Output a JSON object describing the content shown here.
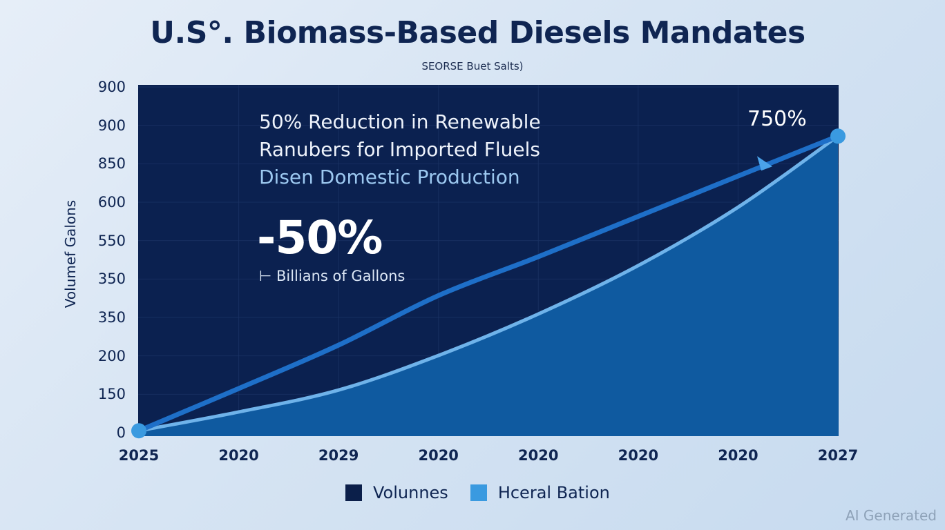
{
  "header": {
    "title": "U.S°. Biomass-Based Diesels Mandates",
    "subtitle": "SEORSE Buet Salts)"
  },
  "annotations": {
    "line1": "50% Reduction in Renewable",
    "line2": "Ranubers for Imported Fluels",
    "line3": "Disen Domestic Production",
    "big_value": "-50%",
    "unit_label": "⊢ Billians of Gallons",
    "end_label": "750%"
  },
  "legend": {
    "items": [
      {
        "label": "Volunnes",
        "color": "#0b1f4a"
      },
      {
        "label": "Hceral Bation",
        "color": "#3a9ae0"
      }
    ]
  },
  "watermark": "AI Generated",
  "colors": {
    "plot_bg": "#0b2150",
    "area_fill": "#0f5aa0",
    "area_line": "#6fb3ea",
    "trend_line": "#1e6fc8",
    "marker": "#3a9ae0"
  },
  "chart_data": {
    "type": "area",
    "title": "U.S°. Biomass-Based Diesels Mandates",
    "subtitle": "SEORSE Buet Salts)",
    "xlabel": "",
    "ylabel": "Volumef Galons",
    "x_tick_labels": [
      "2025",
      "2020",
      "2029",
      "2020",
      "2020",
      "2020",
      "2020",
      "2027"
    ],
    "y_tick_labels": [
      "0",
      "150",
      "200",
      "350",
      "350",
      "550",
      "600",
      "850",
      "900",
      "900"
    ],
    "ylim": [
      0,
      900
    ],
    "grid": true,
    "legend_position": "bottom",
    "series": [
      {
        "name": "Volunnes",
        "kind": "line",
        "values": [
          5,
          115,
          228,
          357,
          458,
          563,
          668,
          772
        ]
      },
      {
        "name": "Hceral Bation",
        "kind": "area",
        "values": [
          5,
          54,
          111,
          201,
          309,
          435,
          587,
          772
        ]
      }
    ],
    "annotations": [
      "50% Reduction in Renewable",
      "Ranubers for Imported Fluels",
      "Disen Domestic Production",
      "-50%",
      "Billians of Gallons",
      "750%"
    ]
  }
}
